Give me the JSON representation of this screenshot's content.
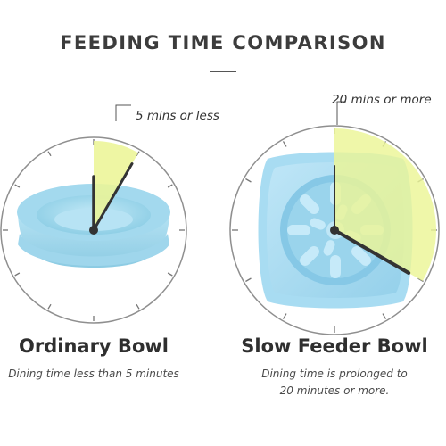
{
  "title": "FEEDING TIME COMPARISON",
  "colors": {
    "highlight": "#ecf596",
    "bowl_blue": "#a9dcef",
    "clock_ring": "#9a9a9a",
    "hand": "#333333"
  },
  "left": {
    "time_label": "5 mins or less",
    "name": "Ordinary Bowl",
    "caption_line1": "Dining time less than 5 minutes",
    "duration_minutes": 5
  },
  "right": {
    "time_label": "20 mins or more",
    "name": "Slow Feeder Bowl",
    "caption_line1": "Dining time is prolonged to",
    "caption_line2": "20 minutes or more.",
    "duration_minutes": 20
  }
}
